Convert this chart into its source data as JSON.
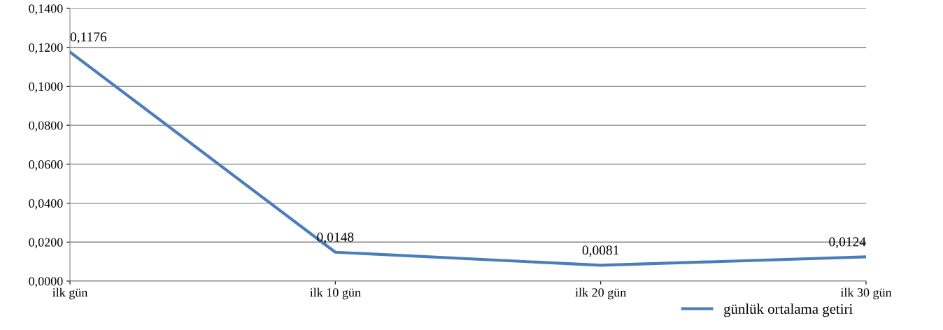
{
  "chart_data": {
    "type": "line",
    "categories": [
      "ilk gün",
      "ilk 10 gün",
      "ilk 20 gün",
      "ilk 30 gün"
    ],
    "series": [
      {
        "name": "günlük ortalama getiri",
        "color": "#4a7ebb",
        "values": [
          0.1176,
          0.0148,
          0.0081,
          0.0124
        ],
        "value_labels": [
          "0,1176",
          "0,0148",
          "0,0081",
          "0,0124"
        ]
      }
    ],
    "ylim": [
      0,
      0.14
    ],
    "yticks": [
      {
        "value": 0,
        "label": "0,0000"
      },
      {
        "value": 0.02,
        "label": "0,0200"
      },
      {
        "value": 0.04,
        "label": "0,0400"
      },
      {
        "value": 0.06,
        "label": "0,0600"
      },
      {
        "value": 0.08,
        "label": "0,0800"
      },
      {
        "value": 0.1,
        "label": "0,1000"
      },
      {
        "value": 0.12,
        "label": "0,1200"
      },
      {
        "value": 0.14,
        "label": "0,1400"
      }
    ],
    "grid": "y",
    "legend": "bottom right",
    "marker": "none",
    "line_style": "solid"
  }
}
